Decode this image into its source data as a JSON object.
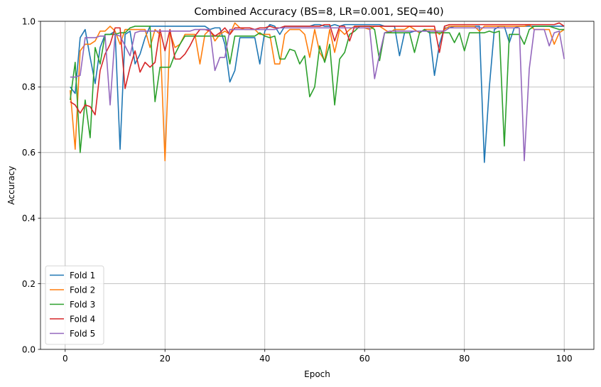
{
  "chart_data": {
    "type": "line",
    "title": "Combined Accuracy (BS=8, LR=0.001, SEQ=40)",
    "xlabel": "Epoch",
    "ylabel": "Accuracy",
    "xlim": [
      -4.95,
      105.95
    ],
    "ylim": [
      0,
      1
    ],
    "xticks": [
      0,
      20,
      40,
      60,
      80,
      100
    ],
    "yticks": [
      0.0,
      0.2,
      0.4,
      0.6,
      0.8,
      1.0
    ],
    "xtick_labels": [
      "0",
      "20",
      "40",
      "60",
      "80",
      "100"
    ],
    "ytick_labels": [
      "0.0",
      "0.2",
      "0.4",
      "0.6",
      "0.8",
      "1.0"
    ],
    "grid": true,
    "legend_position": "lower-left",
    "x_start": 1,
    "series": [
      {
        "name": "Fold 1",
        "color": "#1f77b4",
        "values": [
          0.8,
          0.78,
          0.95,
          0.975,
          0.89,
          0.81,
          0.92,
          0.96,
          0.96,
          0.97,
          0.61,
          0.96,
          0.97,
          0.87,
          0.9,
          0.95,
          0.985,
          0.985,
          0.985,
          0.985,
          0.985,
          0.985,
          0.985,
          0.985,
          0.985,
          0.985,
          0.985,
          0.985,
          0.975,
          0.98,
          0.98,
          0.93,
          0.815,
          0.85,
          0.95,
          0.95,
          0.95,
          0.95,
          0.87,
          0.97,
          0.99,
          0.985,
          0.96,
          0.985,
          0.985,
          0.985,
          0.985,
          0.985,
          0.985,
          0.99,
          0.99,
          0.985,
          0.985,
          0.99,
          0.985,
          0.99,
          0.99,
          0.99,
          0.99,
          0.99,
          0.99,
          0.99,
          0.99,
          0.985,
          0.985,
          0.985,
          0.895,
          0.965,
          0.965,
          0.97,
          0.97,
          0.97,
          0.97,
          0.835,
          0.93,
          0.98,
          0.98,
          0.985,
          0.985,
          0.985,
          0.985,
          0.985,
          0.985,
          0.57,
          0.8,
          0.975,
          0.985,
          0.985,
          0.935,
          0.98,
          0.985,
          0.985,
          0.985,
          0.985,
          0.985,
          0.985,
          0.985,
          0.985,
          0.985,
          0.985
        ]
      },
      {
        "name": "Fold 2",
        "color": "#ff7f0e",
        "values": [
          0.79,
          0.61,
          0.91,
          0.93,
          0.93,
          0.94,
          0.97,
          0.97,
          0.985,
          0.97,
          0.93,
          0.975,
          0.975,
          0.975,
          0.975,
          0.975,
          0.92,
          0.975,
          0.96,
          0.575,
          0.965,
          0.92,
          0.93,
          0.96,
          0.96,
          0.96,
          0.87,
          0.96,
          0.975,
          0.94,
          0.96,
          0.97,
          0.96,
          0.995,
          0.98,
          0.975,
          0.975,
          0.975,
          0.96,
          0.96,
          0.96,
          0.87,
          0.87,
          0.96,
          0.975,
          0.975,
          0.975,
          0.96,
          0.89,
          0.975,
          0.905,
          0.88,
          0.975,
          0.905,
          0.975,
          0.96,
          0.975,
          0.985,
          0.98,
          0.98,
          0.975,
          0.985,
          0.985,
          0.975,
          0.965,
          0.975,
          0.975,
          0.975,
          0.985,
          0.975,
          0.965,
          0.975,
          0.975,
          0.975,
          0.96,
          0.975,
          0.985,
          0.985,
          0.985,
          0.985,
          0.985,
          0.985,
          0.97,
          0.985,
          0.985,
          0.985,
          0.985,
          0.985,
          0.985,
          0.985,
          0.985,
          0.985,
          0.99,
          0.975,
          0.975,
          0.975,
          0.975,
          0.93,
          0.965,
          0.975
        ]
      },
      {
        "name": "Fold 3",
        "color": "#2ca02c",
        "values": [
          0.76,
          0.875,
          0.6,
          0.76,
          0.645,
          0.92,
          0.87,
          0.96,
          0.96,
          0.96,
          0.965,
          0.965,
          0.98,
          0.985,
          0.985,
          0.985,
          0.985,
          0.755,
          0.86,
          0.86,
          0.86,
          0.9,
          0.93,
          0.955,
          0.955,
          0.955,
          0.955,
          0.955,
          0.955,
          0.955,
          0.955,
          0.955,
          0.87,
          0.955,
          0.955,
          0.955,
          0.955,
          0.955,
          0.965,
          0.955,
          0.95,
          0.955,
          0.885,
          0.885,
          0.915,
          0.91,
          0.87,
          0.895,
          0.77,
          0.8,
          0.925,
          0.875,
          0.93,
          0.745,
          0.885,
          0.905,
          0.96,
          0.97,
          0.985,
          0.985,
          0.985,
          0.975,
          0.88,
          0.965,
          0.965,
          0.965,
          0.965,
          0.965,
          0.965,
          0.905,
          0.965,
          0.975,
          0.965,
          0.965,
          0.965,
          0.965,
          0.965,
          0.935,
          0.965,
          0.91,
          0.965,
          0.965,
          0.965,
          0.965,
          0.97,
          0.965,
          0.97,
          0.62,
          0.96,
          0.96,
          0.96,
          0.93,
          0.975,
          0.985,
          0.985,
          0.985,
          0.985,
          0.98,
          0.975,
          0.975
        ]
      },
      {
        "name": "Fold 4",
        "color": "#d62728",
        "values": [
          0.755,
          0.745,
          0.72,
          0.745,
          0.74,
          0.715,
          0.85,
          0.9,
          0.93,
          0.98,
          0.98,
          0.795,
          0.86,
          0.91,
          0.845,
          0.875,
          0.86,
          0.875,
          0.975,
          0.91,
          0.975,
          0.885,
          0.885,
          0.9,
          0.925,
          0.955,
          0.975,
          0.975,
          0.97,
          0.955,
          0.965,
          0.98,
          0.96,
          0.98,
          0.98,
          0.98,
          0.98,
          0.975,
          0.98,
          0.98,
          0.985,
          0.98,
          0.98,
          0.985,
          0.985,
          0.985,
          0.985,
          0.985,
          0.985,
          0.985,
          0.985,
          0.99,
          0.99,
          0.94,
          0.985,
          0.985,
          0.94,
          0.985,
          0.985,
          0.985,
          0.985,
          0.985,
          0.985,
          0.985,
          0.985,
          0.985,
          0.985,
          0.985,
          0.985,
          0.985,
          0.985,
          0.985,
          0.985,
          0.985,
          0.905,
          0.985,
          0.99,
          0.99,
          0.99,
          0.99,
          0.99,
          0.99,
          0.99,
          0.99,
          0.99,
          0.99,
          0.99,
          0.99,
          0.99,
          0.99,
          0.99,
          0.99,
          0.99,
          0.99,
          0.99,
          0.99,
          0.99,
          0.99,
          0.995,
          0.985
        ]
      },
      {
        "name": "Fold 5",
        "color": "#9467bd",
        "values": [
          0.83,
          0.83,
          0.835,
          0.95,
          0.95,
          0.95,
          0.955,
          0.955,
          0.745,
          0.96,
          0.955,
          0.925,
          0.895,
          0.965,
          0.97,
          0.97,
          0.97,
          0.97,
          0.97,
          0.97,
          0.97,
          0.97,
          0.97,
          0.97,
          0.97,
          0.975,
          0.975,
          0.975,
          0.975,
          0.85,
          0.89,
          0.89,
          0.975,
          0.975,
          0.975,
          0.975,
          0.975,
          0.975,
          0.975,
          0.975,
          0.975,
          0.975,
          0.98,
          0.98,
          0.98,
          0.98,
          0.98,
          0.98,
          0.98,
          0.98,
          0.98,
          0.98,
          0.98,
          0.98,
          0.98,
          0.98,
          0.98,
          0.98,
          0.98,
          0.98,
          0.98,
          0.825,
          0.9,
          0.965,
          0.97,
          0.97,
          0.97,
          0.97,
          0.97,
          0.97,
          0.97,
          0.97,
          0.97,
          0.97,
          0.97,
          0.97,
          0.98,
          0.98,
          0.98,
          0.98,
          0.98,
          0.98,
          0.98,
          0.98,
          0.98,
          0.98,
          0.98,
          0.98,
          0.98,
          0.98,
          0.98,
          0.575,
          0.855,
          0.975,
          0.975,
          0.975,
          0.925,
          0.965,
          0.97,
          0.885
        ]
      }
    ]
  }
}
